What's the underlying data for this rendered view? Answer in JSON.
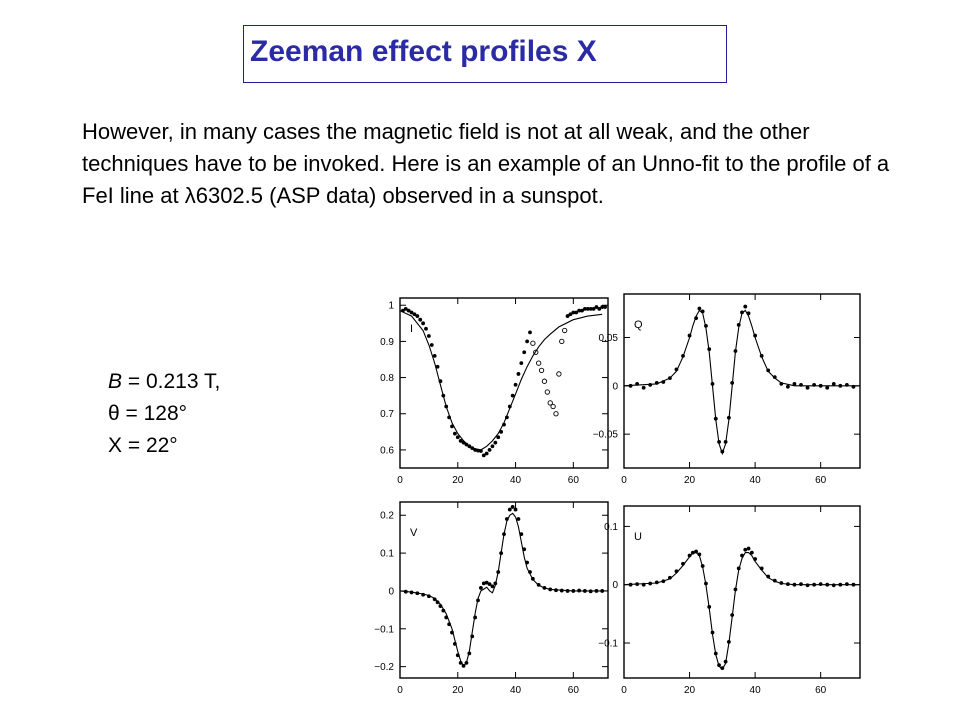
{
  "slide": {
    "title": "Zeeman effect profiles X",
    "body": "However, in many cases the magnetic field is not at all weak, and the other techniques have to be invoked. Here is an example of an Unno-fit to the profile of a FeI line at λ6302.5 (ASP data) observed in a sunspot.",
    "params": [
      {
        "symbol": "B",
        "rest": " = 0.213 T,"
      },
      {
        "symbol": "",
        "rest": "θ = 128°"
      },
      {
        "symbol": "",
        "rest": "X = 22°"
      }
    ],
    "colors": {
      "title": "#2b2ba5",
      "title_border": "#1f1f9a",
      "ink": "#000000"
    }
  },
  "chart_data": [
    {
      "type": "line",
      "panel_label": "I",
      "xlim": [
        0,
        72
      ],
      "ylim": [
        0.55,
        1.02
      ],
      "xticks": [
        0,
        20,
        40,
        60
      ],
      "xtick_labels": [
        "0",
        "20",
        "40",
        "60"
      ],
      "yticks": [
        0.6,
        0.7,
        0.8,
        0.9,
        1.0
      ],
      "ytick_labels": [
        "0.6",
        "0.7",
        "0.8",
        "0.9",
        "1"
      ],
      "series": [
        {
          "style": "line",
          "x": [
            0,
            4,
            8,
            10,
            12,
            14,
            16,
            18,
            20,
            22,
            24,
            26,
            28,
            30,
            32,
            34,
            36,
            38,
            40,
            42,
            44,
            46,
            48,
            50,
            52,
            55,
            60,
            65,
            70
          ],
          "y": [
            0.985,
            0.97,
            0.93,
            0.89,
            0.84,
            0.78,
            0.72,
            0.675,
            0.645,
            0.625,
            0.61,
            0.603,
            0.6,
            0.61,
            0.625,
            0.645,
            0.675,
            0.715,
            0.755,
            0.795,
            0.83,
            0.86,
            0.885,
            0.905,
            0.92,
            0.94,
            0.96,
            0.97,
            0.975
          ]
        },
        {
          "style": "dots",
          "x": [
            1,
            2,
            3,
            4,
            5,
            6,
            7,
            8,
            9,
            10,
            11,
            12,
            13,
            14,
            15,
            16,
            17,
            18,
            19,
            20,
            21,
            22,
            23,
            24,
            25,
            26,
            27,
            28,
            29,
            30,
            31,
            32,
            33,
            34,
            35,
            36,
            37,
            38,
            39,
            40,
            41,
            42,
            43,
            44,
            45,
            58,
            59,
            60,
            61,
            62,
            63,
            64,
            65,
            66,
            67,
            68,
            69,
            70,
            71
          ],
          "y": [
            0.985,
            0.99,
            0.985,
            0.98,
            0.975,
            0.97,
            0.96,
            0.95,
            0.935,
            0.915,
            0.89,
            0.86,
            0.83,
            0.79,
            0.75,
            0.72,
            0.69,
            0.665,
            0.645,
            0.635,
            0.625,
            0.62,
            0.615,
            0.61,
            0.605,
            0.6,
            0.598,
            0.597,
            0.585,
            0.59,
            0.6,
            0.61,
            0.62,
            0.635,
            0.65,
            0.67,
            0.69,
            0.72,
            0.75,
            0.78,
            0.81,
            0.84,
            0.87,
            0.9,
            0.925,
            0.97,
            0.975,
            0.98,
            0.98,
            0.985,
            0.985,
            0.99,
            0.99,
            0.99,
            0.99,
            0.995,
            0.99,
            0.995,
            0.995
          ]
        },
        {
          "style": "circles",
          "x": [
            46,
            47,
            48,
            49,
            50,
            51,
            52,
            53,
            54,
            55,
            56,
            57
          ],
          "y": [
            0.895,
            0.87,
            0.84,
            0.82,
            0.79,
            0.76,
            0.73,
            0.72,
            0.7,
            0.81,
            0.9,
            0.93
          ]
        }
      ]
    },
    {
      "type": "line",
      "panel_label": "Q",
      "xlim": [
        0,
        72
      ],
      "ylim": [
        -0.085,
        0.095
      ],
      "xticks": [
        0,
        20,
        40,
        60
      ],
      "xtick_labels": [
        "0",
        "20",
        "40",
        "60"
      ],
      "yticks": [
        -0.05,
        0,
        0.05
      ],
      "ytick_labels": [
        "−0.05",
        "0",
        "0.05"
      ],
      "series": [
        {
          "style": "line",
          "x": [
            0,
            10,
            14,
            16,
            18,
            20,
            21,
            22,
            23,
            24,
            25,
            26,
            27,
            28,
            29,
            30,
            31,
            32,
            33,
            34,
            35,
            36,
            37,
            38,
            39,
            40,
            42,
            44,
            46,
            48,
            52,
            60,
            72
          ],
          "y": [
            0,
            0.002,
            0.008,
            0.015,
            0.03,
            0.05,
            0.062,
            0.072,
            0.078,
            0.075,
            0.06,
            0.035,
            0.0,
            -0.035,
            -0.06,
            -0.07,
            -0.06,
            -0.035,
            0.0,
            0.035,
            0.06,
            0.075,
            0.078,
            0.072,
            0.062,
            0.05,
            0.03,
            0.015,
            0.008,
            0.003,
            0.0,
            0.0,
            0.0
          ]
        },
        {
          "style": "dots",
          "x": [
            2,
            4,
            6,
            8,
            10,
            12,
            14,
            16,
            18,
            20,
            22,
            23,
            24,
            25,
            26,
            27,
            28,
            29,
            30,
            31,
            32,
            33,
            34,
            35,
            36,
            37,
            38,
            40,
            42,
            44,
            46,
            48,
            50,
            52,
            54,
            56,
            58,
            60,
            62,
            64,
            66,
            68,
            70
          ],
          "y": [
            0.0,
            0.002,
            -0.002,
            0.001,
            0.003,
            0.004,
            0.008,
            0.017,
            0.031,
            0.052,
            0.07,
            0.08,
            0.077,
            0.062,
            0.038,
            0.002,
            -0.034,
            -0.058,
            -0.068,
            -0.058,
            -0.033,
            0.003,
            0.036,
            0.063,
            0.076,
            0.082,
            0.075,
            0.052,
            0.031,
            0.016,
            0.009,
            0.002,
            -0.001,
            0.002,
            0.001,
            -0.002,
            0.001,
            0.0,
            -0.002,
            0.002,
            0.0,
            0.001,
            -0.001
          ]
        }
      ]
    },
    {
      "type": "line",
      "panel_label": "V",
      "xlim": [
        0,
        72
      ],
      "ylim": [
        -0.23,
        0.235
      ],
      "xticks": [
        0,
        20,
        40,
        60
      ],
      "xtick_labels": [
        "0",
        "20",
        "40",
        "60"
      ],
      "yticks": [
        -0.2,
        -0.1,
        0,
        0.1,
        0.2
      ],
      "ytick_labels": [
        "−0.2",
        "−0.1",
        "0",
        "0.1",
        "0.2"
      ],
      "series": [
        {
          "style": "line",
          "x": [
            0,
            4,
            8,
            10,
            12,
            14,
            16,
            18,
            19,
            20,
            21,
            22,
            23,
            24,
            25,
            26,
            27,
            28,
            29,
            30,
            31,
            32,
            33,
            34,
            35,
            36,
            37,
            38,
            39,
            40,
            41,
            42,
            43,
            44,
            46,
            48,
            50,
            52,
            56,
            60,
            72
          ],
          "y": [
            0,
            -0.003,
            -0.008,
            -0.012,
            -0.02,
            -0.035,
            -0.06,
            -0.1,
            -0.13,
            -0.16,
            -0.185,
            -0.198,
            -0.19,
            -0.16,
            -0.11,
            -0.06,
            -0.02,
            0.0,
            0.005,
            0.01,
            0.0,
            -0.005,
            0.015,
            0.05,
            0.1,
            0.15,
            0.185,
            0.2,
            0.205,
            0.195,
            0.17,
            0.13,
            0.09,
            0.06,
            0.03,
            0.015,
            0.008,
            0.004,
            0.002,
            0.0,
            0.0
          ]
        },
        {
          "style": "dots",
          "x": [
            2,
            4,
            6,
            8,
            10,
            12,
            13,
            14,
            15,
            16,
            17,
            18,
            19,
            20,
            21,
            22,
            23,
            24,
            25,
            26,
            27,
            28,
            29,
            30,
            31,
            32,
            33,
            34,
            35,
            36,
            37,
            38,
            39,
            40,
            41,
            42,
            43,
            44,
            45,
            46,
            48,
            50,
            52,
            54,
            56,
            58,
            60,
            62,
            64,
            66,
            68,
            70
          ],
          "y": [
            -0.002,
            -0.004,
            -0.006,
            -0.01,
            -0.014,
            -0.022,
            -0.03,
            -0.04,
            -0.052,
            -0.07,
            -0.088,
            -0.11,
            -0.14,
            -0.17,
            -0.19,
            -0.198,
            -0.19,
            -0.165,
            -0.12,
            -0.07,
            -0.025,
            0.008,
            0.02,
            0.022,
            0.018,
            0.012,
            0.02,
            0.05,
            0.1,
            0.15,
            0.19,
            0.215,
            0.222,
            0.215,
            0.19,
            0.15,
            0.11,
            0.075,
            0.05,
            0.032,
            0.016,
            0.008,
            0.004,
            0.002,
            0.001,
            0.0,
            0.0,
            0.001,
            0.0,
            -0.001,
            0.0,
            0.0
          ]
        }
      ]
    },
    {
      "type": "line",
      "panel_label": "U",
      "xlim": [
        0,
        72
      ],
      "ylim": [
        -0.16,
        0.135
      ],
      "xticks": [
        0,
        20,
        40,
        60
      ],
      "xtick_labels": [
        "0",
        "20",
        "40",
        "60"
      ],
      "yticks": [
        -0.1,
        0,
        0.1
      ],
      "ytick_labels": [
        "−0.1",
        "0",
        "0.1"
      ],
      "series": [
        {
          "style": "line",
          "x": [
            0,
            10,
            14,
            16,
            18,
            20,
            21,
            22,
            23,
            24,
            25,
            26,
            27,
            28,
            29,
            30,
            31,
            32,
            33,
            34,
            35,
            36,
            37,
            38,
            39,
            40,
            42,
            44,
            46,
            48,
            52,
            60,
            72
          ],
          "y": [
            0,
            0.003,
            0.01,
            0.02,
            0.033,
            0.048,
            0.054,
            0.055,
            0.05,
            0.03,
            0.0,
            -0.04,
            -0.085,
            -0.12,
            -0.14,
            -0.145,
            -0.135,
            -0.1,
            -0.055,
            -0.01,
            0.025,
            0.045,
            0.055,
            0.055,
            0.05,
            0.04,
            0.025,
            0.012,
            0.006,
            0.002,
            0.0,
            0.0,
            0.0
          ]
        },
        {
          "style": "dots",
          "x": [
            2,
            4,
            6,
            8,
            10,
            12,
            14,
            16,
            18,
            20,
            21,
            22,
            23,
            24,
            25,
            26,
            27,
            28,
            29,
            30,
            31,
            32,
            33,
            34,
            35,
            36,
            37,
            38,
            39,
            40,
            42,
            44,
            46,
            48,
            50,
            52,
            54,
            56,
            58,
            60,
            62,
            64,
            66,
            68,
            70
          ],
          "y": [
            0.0,
            0.001,
            0.0,
            0.002,
            0.004,
            0.006,
            0.012,
            0.023,
            0.036,
            0.05,
            0.055,
            0.057,
            0.052,
            0.032,
            0.002,
            -0.038,
            -0.082,
            -0.118,
            -0.138,
            -0.143,
            -0.132,
            -0.098,
            -0.052,
            -0.008,
            0.028,
            0.05,
            0.06,
            0.062,
            0.055,
            0.044,
            0.028,
            0.014,
            0.007,
            0.003,
            0.001,
            0.0,
            0.001,
            -0.001,
            0.0,
            0.001,
            0.0,
            -0.001,
            0.0,
            0.001,
            0.0
          ]
        }
      ]
    }
  ]
}
